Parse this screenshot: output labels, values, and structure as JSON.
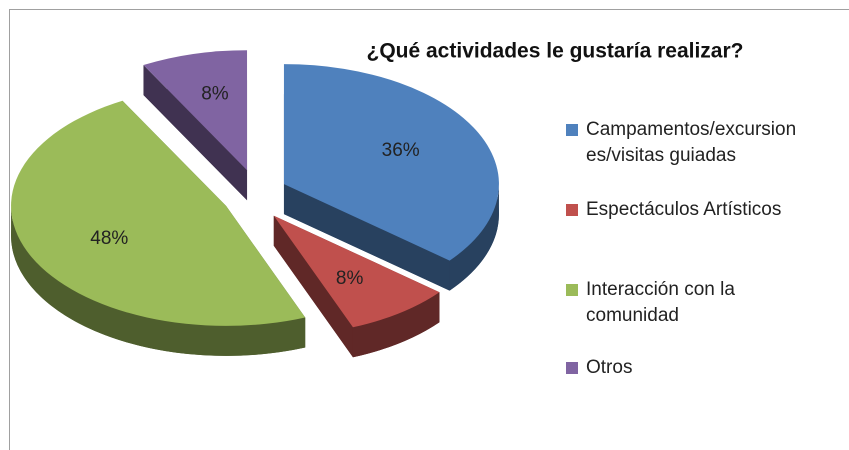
{
  "chart_data": {
    "type": "pie",
    "title": "¿Qué actividades le gustaría realizar?",
    "categories": [
      "Campamentos/excursiones/visitas guiadas",
      "Espectáculos Artísticos",
      "Interacción con la comunidad",
      "Otros"
    ],
    "values": [
      36,
      8,
      48,
      8
    ],
    "value_labels": [
      "36%",
      "8%",
      "48%",
      "8%"
    ],
    "colors": [
      "#4f81bd",
      "#c0504d",
      "#9bbb59",
      "#8064a2"
    ],
    "legend": "right"
  }
}
